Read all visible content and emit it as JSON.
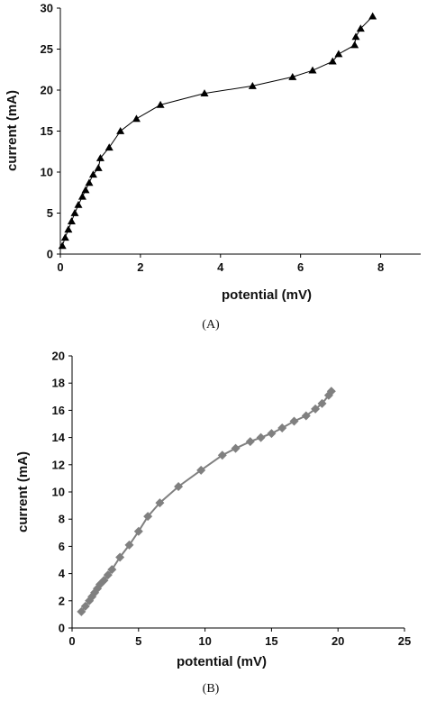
{
  "chart_data": [
    {
      "type": "line",
      "caption": "(A)",
      "xlabel": "potential (mV)",
      "ylabel": "current (mA)",
      "xlim": [
        0,
        9
      ],
      "ylim": [
        0,
        30
      ],
      "xticks": [
        0,
        2,
        4,
        6,
        8
      ],
      "yticks": [
        0,
        5,
        10,
        15,
        20,
        25,
        30
      ],
      "grid": false,
      "marker": "triangle",
      "color": "#000000",
      "series": [
        {
          "x": [
            0.05,
            0.12,
            0.2,
            0.28,
            0.36,
            0.45,
            0.55,
            0.63,
            0.72,
            0.82,
            0.95,
            1.0,
            1.22,
            1.5,
            1.9,
            2.5,
            3.6,
            4.8,
            5.8,
            6.3,
            6.8,
            6.95,
            7.35,
            7.38,
            7.5,
            7.8
          ],
          "y": [
            1.0,
            2.0,
            3.0,
            4.0,
            5.0,
            6.0,
            7.0,
            7.8,
            8.7,
            9.7,
            10.5,
            11.7,
            13.0,
            15.0,
            16.5,
            18.2,
            19.6,
            20.5,
            21.6,
            22.4,
            23.5,
            24.4,
            25.5,
            26.5,
            27.5,
            29.0
          ]
        }
      ]
    },
    {
      "type": "line",
      "caption": "(B)",
      "xlabel": "potential (mV)",
      "ylabel": "current (mA)",
      "xlim": [
        0,
        25
      ],
      "ylim": [
        0,
        20
      ],
      "xticks": [
        0,
        5,
        10,
        15,
        20,
        25
      ],
      "yticks": [
        0,
        2,
        4,
        6,
        8,
        10,
        12,
        14,
        16,
        18,
        20
      ],
      "grid": false,
      "marker": "diamond",
      "color": "#808080",
      "series": [
        {
          "x": [
            0.7,
            1.0,
            1.3,
            1.5,
            1.7,
            1.9,
            2.1,
            2.4,
            2.7,
            3.0,
            3.6,
            4.3,
            5.0,
            5.7,
            6.6,
            8.0,
            9.7,
            11.3,
            12.3,
            13.4,
            14.2,
            15.0,
            15.8,
            16.7,
            17.6,
            18.3,
            18.8,
            19.3,
            19.5
          ],
          "y": [
            1.2,
            1.6,
            2.0,
            2.3,
            2.6,
            2.9,
            3.2,
            3.5,
            3.9,
            4.3,
            5.2,
            6.1,
            7.1,
            8.2,
            9.2,
            10.4,
            11.6,
            12.7,
            13.2,
            13.7,
            14.0,
            14.3,
            14.7,
            15.2,
            15.6,
            16.1,
            16.5,
            17.1,
            17.4
          ]
        }
      ]
    }
  ]
}
